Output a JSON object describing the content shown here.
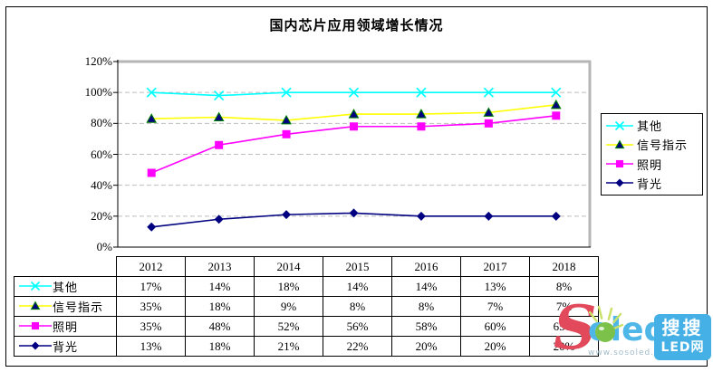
{
  "title": "国内芯片应用领域增长情况",
  "chart_data": {
    "type": "line",
    "stacked": true,
    "title": "国内芯片应用领域增长情况",
    "categories": [
      "2012",
      "2013",
      "2014",
      "2015",
      "2016",
      "2017",
      "2018"
    ],
    "y_ticks": [
      "120%",
      "100%",
      "80%",
      "60%",
      "40%",
      "20%",
      "0%"
    ],
    "ylim": [
      0,
      120
    ],
    "grid": true,
    "legend_position": "right",
    "series": [
      {
        "id": "other",
        "label": "其他",
        "color": "#00ffff",
        "marker": "x",
        "marker_color": "#00ffff",
        "marker_stroke": "#00ffff",
        "values_pct": [
          17,
          14,
          18,
          14,
          14,
          13,
          8
        ],
        "line_pct": [
          100,
          98,
          100,
          100,
          100,
          100,
          100
        ]
      },
      {
        "id": "signal",
        "label": "信号指示",
        "color": "#ffff00",
        "marker": "triangle",
        "marker_color": "#000080",
        "marker_stroke": "#008000",
        "values_pct": [
          35,
          18,
          9,
          8,
          8,
          7,
          7
        ],
        "line_pct": [
          83,
          84,
          82,
          86,
          86,
          87,
          92
        ]
      },
      {
        "id": "lighting",
        "label": "照明",
        "color": "#ff00ff",
        "marker": "square",
        "marker_color": "#ff00ff",
        "marker_stroke": "#ff00ff",
        "values_pct": [
          35,
          48,
          52,
          56,
          58,
          60,
          65
        ],
        "line_pct": [
          48,
          66,
          73,
          78,
          78,
          80,
          85
        ]
      },
      {
        "id": "backlight",
        "label": "背光",
        "color": "#000080",
        "marker": "diamond",
        "marker_color": "#000080",
        "marker_stroke": "#000080",
        "values_pct": [
          13,
          18,
          21,
          22,
          20,
          20,
          20
        ],
        "line_pct": [
          13,
          18,
          21,
          22,
          20,
          20,
          20
        ]
      }
    ]
  },
  "table": {
    "value_suffix": "%"
  },
  "watermark": {
    "logo_s": "S",
    "logo_rest": "oled",
    "url": "www.sosoled.com",
    "badge_line1": "搜搜",
    "badge_line2": "LED网",
    "colors": {
      "s": "#e2495a",
      "rest": "#4fb6e8",
      "badge_bg": "#45b0e5",
      "bulb": "#7cc24a",
      "rays": "#cbe26a",
      "url": "#a4bcca"
    }
  }
}
